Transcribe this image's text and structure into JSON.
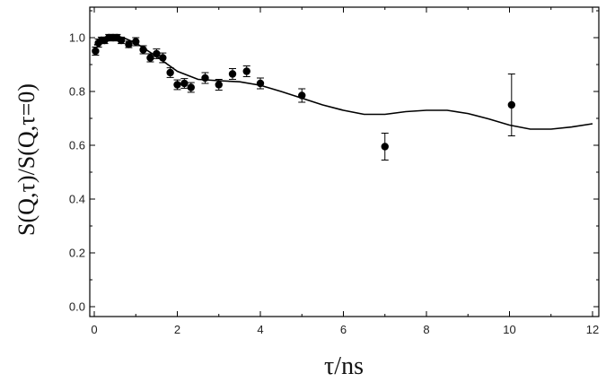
{
  "chart_data": {
    "type": "scatter",
    "xlabel": "τ/ns",
    "ylabel": "S(Q,τ)/S(Q,τ=0)",
    "xlim": [
      0,
      12
    ],
    "ylim": [
      -0.02,
      1.12
    ],
    "x_ticks": [
      0,
      2,
      4,
      6,
      8,
      10,
      12
    ],
    "x_tick_labels": [
      "0",
      "2",
      "4",
      "6",
      "8",
      "10",
      "12"
    ],
    "y_ticks": [
      0.0,
      0.2,
      0.4,
      0.6,
      0.8,
      1.0
    ],
    "y_tick_labels": [
      "0.0",
      "0.2",
      "0.4",
      "0.6",
      "0.8",
      "1.0"
    ],
    "grid": false,
    "series": [
      {
        "kind": "points_with_error_bars",
        "points": [
          {
            "x": 0.03,
            "y": 0.95,
            "err": 0.015
          },
          {
            "x": 0.1,
            "y": 0.98,
            "err": 0.015
          },
          {
            "x": 0.17,
            "y": 0.99,
            "err": 0.012
          },
          {
            "x": 0.25,
            "y": 0.99,
            "err": 0.012
          },
          {
            "x": 0.35,
            "y": 1.0,
            "err": 0.012
          },
          {
            "x": 0.45,
            "y": 1.0,
            "err": 0.012
          },
          {
            "x": 0.55,
            "y": 1.0,
            "err": 0.012
          },
          {
            "x": 0.65,
            "y": 0.99,
            "err": 0.012
          },
          {
            "x": 0.83,
            "y": 0.975,
            "err": 0.012
          },
          {
            "x": 1.0,
            "y": 0.985,
            "err": 0.015
          },
          {
            "x": 1.18,
            "y": 0.955,
            "err": 0.015
          },
          {
            "x": 1.35,
            "y": 0.925,
            "err": 0.015
          },
          {
            "x": 1.5,
            "y": 0.94,
            "err": 0.018
          },
          {
            "x": 1.65,
            "y": 0.925,
            "err": 0.018
          },
          {
            "x": 1.83,
            "y": 0.87,
            "err": 0.018
          },
          {
            "x": 2.0,
            "y": 0.825,
            "err": 0.018
          },
          {
            "x": 2.17,
            "y": 0.83,
            "err": 0.018
          },
          {
            "x": 2.33,
            "y": 0.815,
            "err": 0.018
          },
          {
            "x": 2.67,
            "y": 0.85,
            "err": 0.02
          },
          {
            "x": 3.0,
            "y": 0.825,
            "err": 0.02
          },
          {
            "x": 3.33,
            "y": 0.865,
            "err": 0.02
          },
          {
            "x": 3.67,
            "y": 0.875,
            "err": 0.02
          },
          {
            "x": 4.0,
            "y": 0.83,
            "err": 0.02
          },
          {
            "x": 5.0,
            "y": 0.785,
            "err": 0.025
          },
          {
            "x": 7.0,
            "y": 0.595,
            "err": 0.05
          },
          {
            "x": 10.05,
            "y": 0.75,
            "err": 0.115
          }
        ]
      },
      {
        "kind": "line",
        "x": [
          0.0,
          0.2,
          0.4,
          0.5,
          0.7,
          1.0,
          1.5,
          2.0,
          2.5,
          3.0,
          3.5,
          4.0,
          4.5,
          5.0,
          5.5,
          6.0,
          6.5,
          7.0,
          7.5,
          8.0,
          8.5,
          9.0,
          9.5,
          10.0,
          10.5,
          11.0,
          11.5,
          12.0
        ],
        "y": [
          0.972,
          0.995,
          1.003,
          1.003,
          1.0,
          0.98,
          0.93,
          0.875,
          0.845,
          0.84,
          0.836,
          0.823,
          0.8,
          0.775,
          0.75,
          0.73,
          0.715,
          0.715,
          0.725,
          0.73,
          0.73,
          0.718,
          0.698,
          0.675,
          0.66,
          0.66,
          0.668,
          0.68
        ]
      }
    ]
  }
}
